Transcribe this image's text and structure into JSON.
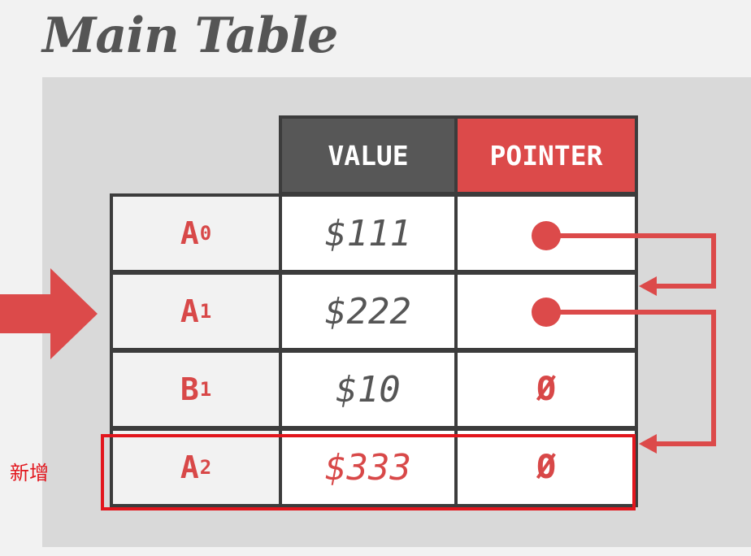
{
  "title": "Main Table",
  "columns": {
    "value": "VALUE",
    "pointer": "POINTER"
  },
  "rows": [
    {
      "key": "A",
      "sub": "0",
      "value": "$111",
      "pointer": ""
    },
    {
      "key": "A",
      "sub": "1",
      "value": "$222",
      "pointer": ""
    },
    {
      "key": "B",
      "sub": "1",
      "value": "$10",
      "pointer": "Ø"
    },
    {
      "key": "A",
      "sub": "2",
      "value": "$333",
      "pointer": "Ø"
    }
  ],
  "new_row_label": "新增",
  "colors": {
    "accent": "#dc4a4a",
    "dark": "#575757",
    "highlight": "#e2161d"
  }
}
